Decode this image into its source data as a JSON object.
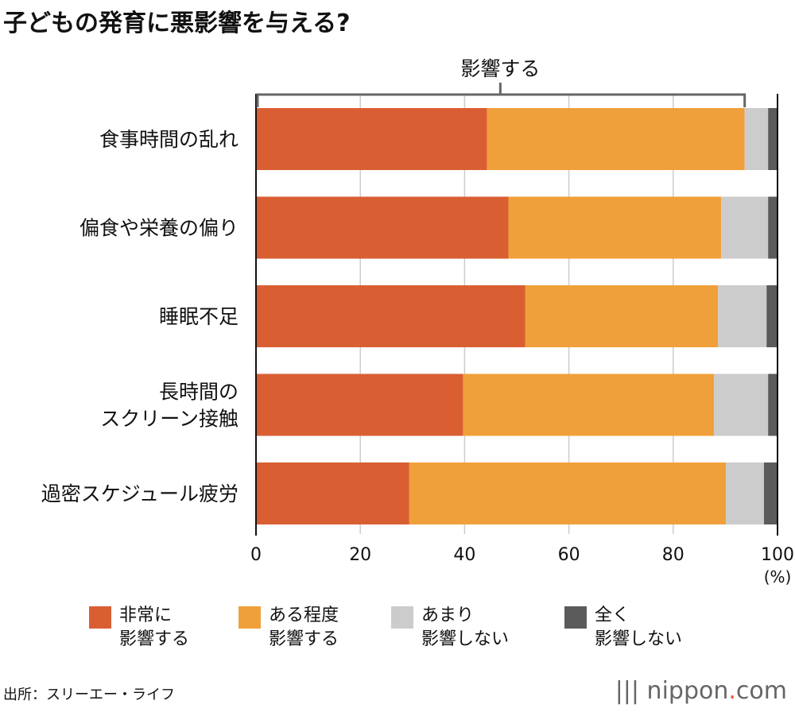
{
  "title": "子どもの発育に悪影響を与える?",
  "source": "出所：スリーエー・ライフ",
  "logo": "nippon.com",
  "chart_data": {
    "type": "bar",
    "orientation": "horizontal",
    "stacked": true,
    "categories": [
      "食事時間の乱れ",
      "偏食や栄養の偏り",
      "睡眠不足",
      "長時間の\nスクリーン接触",
      "過密スケジュール疲労"
    ],
    "series": [
      {
        "name": "非常に\n影響する",
        "color": "#d95f33",
        "values": [
          44.3,
          48.4,
          51.6,
          39.7,
          29.4
        ]
      },
      {
        "name": "ある程度\n影響する",
        "color": "#f0a03a",
        "values": [
          49.4,
          40.8,
          37.0,
          48.1,
          60.7
        ]
      },
      {
        "name": "あまり\n影響しない",
        "color": "#cccccc",
        "values": [
          4.5,
          9.0,
          9.3,
          10.4,
          7.3
        ]
      },
      {
        "name": "全く\n影響しない",
        "color": "#5b5b5b",
        "values": [
          1.8,
          1.8,
          2.1,
          1.8,
          2.6
        ]
      }
    ],
    "xlim": [
      0,
      100
    ],
    "xticks": [
      "0",
      "20",
      "40",
      "60",
      "80",
      "100"
    ],
    "xunit": "(%)",
    "bracket_label": "影響する",
    "grid": true,
    "legend_position": "bottom"
  }
}
